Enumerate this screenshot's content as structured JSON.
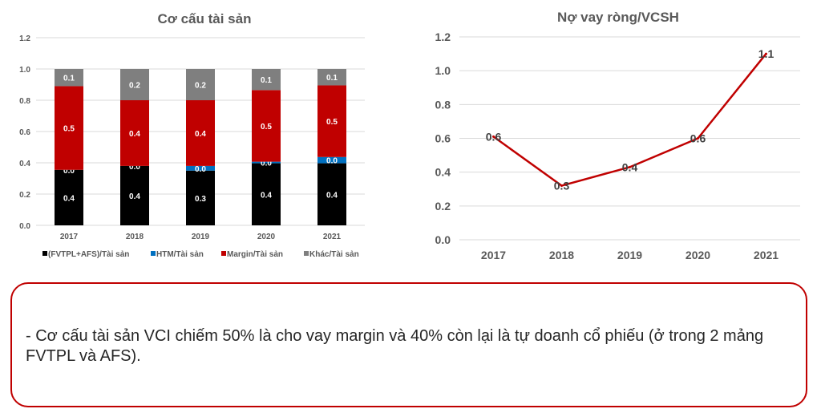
{
  "chart_data": [
    {
      "type": "bar",
      "stacked": true,
      "title": "Cơ cấu tài sản",
      "xlabel": "",
      "ylabel": "",
      "ylim": [
        0,
        1.2
      ],
      "yticks": [
        "0.0",
        "0.2",
        "0.4",
        "0.6",
        "0.8",
        "1.0",
        "1.2"
      ],
      "grid": true,
      "legend_position": "bottom",
      "categories": [
        "2017",
        "2018",
        "2019",
        "2020",
        "2021"
      ],
      "series": [
        {
          "name": "(FVTPL+AFS)/Tài sản",
          "color": "#000000",
          "values": [
            0.355,
            0.38,
            0.35,
            0.397,
            0.397
          ],
          "labels": [
            "0.4",
            "0.4",
            "0.3",
            "0.4",
            "0.4"
          ]
        },
        {
          "name": "HTM/Tài sản",
          "color": "#0070c0",
          "values": [
            0.0,
            0.0,
            0.03,
            0.01,
            0.04
          ],
          "labels": [
            "0.0",
            "0.0",
            "0.0",
            "0.0",
            "0.0"
          ]
        },
        {
          "name": "Margin/Tài sản",
          "color": "#c00000",
          "values": [
            0.535,
            0.42,
            0.42,
            0.458,
            0.458
          ],
          "labels": [
            "0.5",
            "0.4",
            "0.4",
            "0.5",
            "0.5"
          ]
        },
        {
          "name": "Khác/Tài sản",
          "color": "#7f7f7f",
          "values": [
            0.11,
            0.2,
            0.2,
            0.135,
            0.105
          ],
          "labels": [
            "0.1",
            "0.2",
            "0.2",
            "0.1",
            "0.1"
          ]
        }
      ]
    },
    {
      "type": "line",
      "title": "Nợ vay ròng/VCSH",
      "xlabel": "",
      "ylabel": "",
      "ylim": [
        0,
        1.2
      ],
      "yticks": [
        "0.0",
        "0.2",
        "0.4",
        "0.6",
        "0.8",
        "1.0",
        "1.2"
      ],
      "grid": true,
      "legend_position": "none",
      "categories": [
        "2017",
        "2018",
        "2019",
        "2020",
        "2021"
      ],
      "series": [
        {
          "name": "Nợ vay ròng/VCSH",
          "color": "#c00000",
          "values": [
            0.61,
            0.32,
            0.43,
            0.6,
            1.1
          ],
          "labels": [
            "0.6",
            "0.3",
            "0.4",
            "0.6",
            "1.1"
          ]
        }
      ]
    }
  ],
  "note": {
    "text": "- Cơ cấu tài sản VCI chiếm 50% là cho vay margin và 40% còn lại là tự doanh cổ phiếu (ở trong 2 mảng FVTPL và AFS)."
  }
}
